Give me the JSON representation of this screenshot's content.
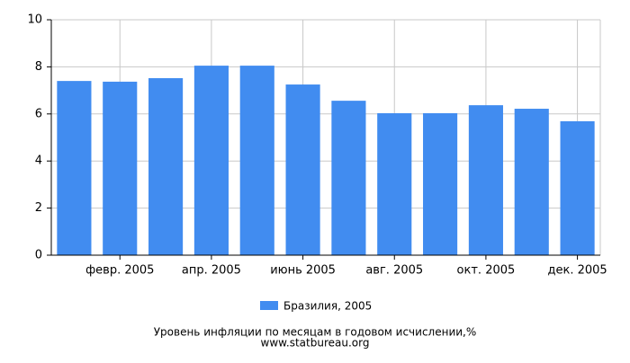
{
  "chart_data": {
    "type": "bar",
    "title": "Уровень инфляции по месяцам в годовом исчислении,%",
    "source": "www.statbureau.org",
    "categories": [
      null,
      "февр. 2005",
      null,
      "апр. 2005",
      null,
      "июнь 2005",
      null,
      "авг. 2005",
      null,
      "окт. 2005",
      null,
      "дек. 2005"
    ],
    "series": [
      {
        "name": "Бразилия, 2005",
        "color": "#418cf0",
        "values": [
          7.4,
          7.37,
          7.52,
          8.05,
          8.05,
          7.25,
          6.56,
          6.03,
          6.03,
          6.37,
          6.22,
          5.69
        ]
      }
    ],
    "ylim": [
      0,
      10
    ],
    "yticks": [
      0,
      2,
      4,
      6,
      8,
      10
    ],
    "grid": true
  }
}
